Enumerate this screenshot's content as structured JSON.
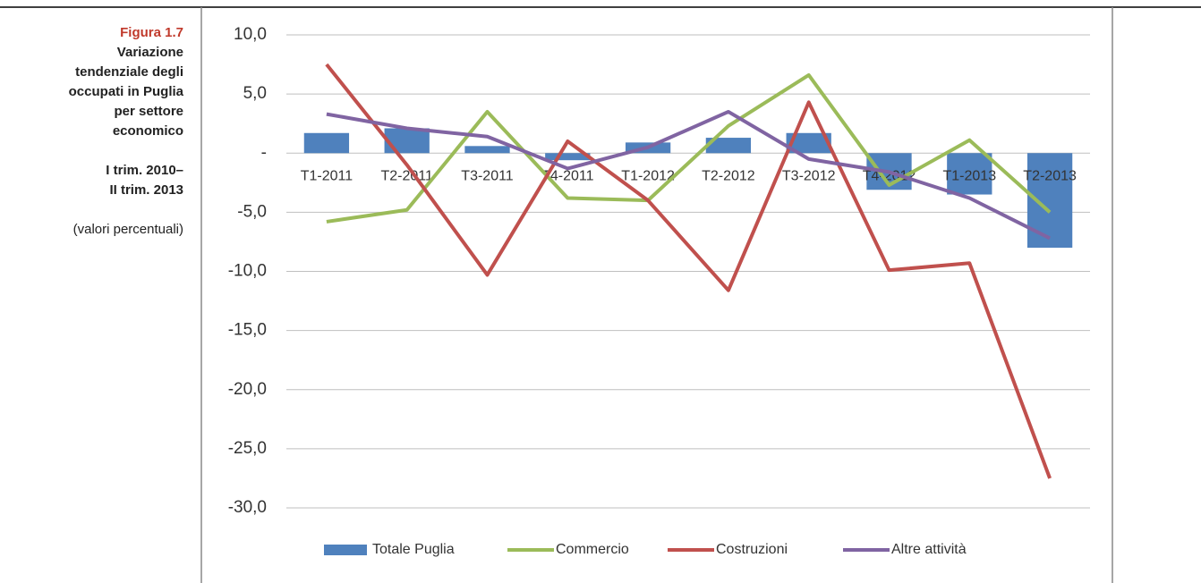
{
  "chart_data": {
    "type": "bar-line",
    "figure_label": "Figura 1.7",
    "title_lines": [
      "Variazione",
      "tendenziale degli",
      "occupati in Puglia",
      "per settore",
      "economico"
    ],
    "period_lines": [
      "I trim. 2010–",
      "II trim. 2013"
    ],
    "note": "(valori percentuali)",
    "categories": [
      "T1-2011",
      "T2-2011",
      "T3-2011",
      "T4-2011",
      "T1-2012",
      "T2-2012",
      "T3-2012",
      "T4-2012",
      "T1-2013",
      "T2-2013"
    ],
    "series": [
      {
        "name": "Totale Puglia",
        "type": "bar",
        "color": "#4f81bd",
        "values": [
          1.7,
          2.1,
          0.6,
          -0.6,
          0.9,
          1.3,
          1.7,
          -3.1,
          -3.5,
          -8.0
        ]
      },
      {
        "name": "Commercio",
        "type": "line",
        "color": "#9bbb59",
        "values": [
          -5.8,
          -4.8,
          3.5,
          -3.8,
          -4.0,
          2.3,
          6.6,
          -2.7,
          1.1,
          -5.0
        ]
      },
      {
        "name": "Costruzioni",
        "type": "line",
        "color": "#c0504d",
        "values": [
          7.5,
          -1.0,
          -10.3,
          1.0,
          -4.0,
          -11.6,
          4.3,
          -9.9,
          -9.3,
          -27.5
        ]
      },
      {
        "name": "Altre attività",
        "type": "line",
        "color": "#8064a2",
        "values": [
          3.3,
          2.1,
          1.4,
          -1.3,
          0.5,
          3.5,
          -0.5,
          -1.6,
          -3.8,
          -7.2
        ]
      }
    ],
    "ylim": [
      -30,
      10
    ],
    "yticks": [
      {
        "value": 10,
        "label": "10,0"
      },
      {
        "value": 5,
        "label": "5,0"
      },
      {
        "value": 0,
        "label": "-"
      },
      {
        "value": -5,
        "label": "-5,0"
      },
      {
        "value": -10,
        "label": "-10,0"
      },
      {
        "value": -15,
        "label": "-15,0"
      },
      {
        "value": -20,
        "label": "-20,0"
      },
      {
        "value": -25,
        "label": "-25,0"
      },
      {
        "value": -30,
        "label": "-30,0"
      }
    ],
    "grid": true,
    "legend": "bottom"
  }
}
